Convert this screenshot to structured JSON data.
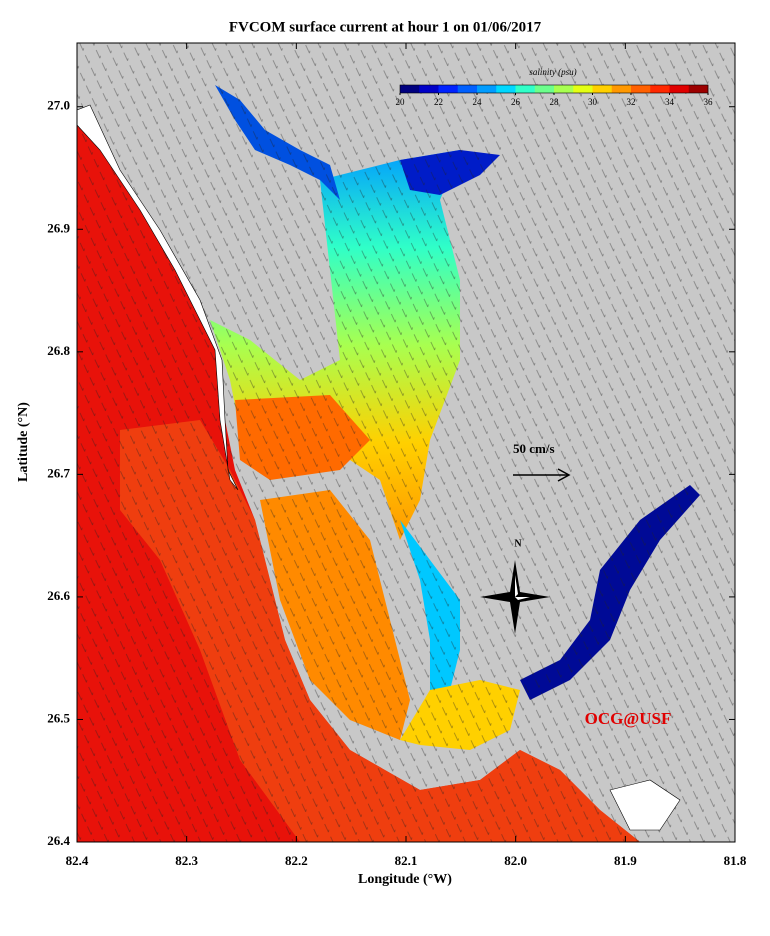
{
  "title": "FVCOM surface current at hour 1 on 01/06/2017",
  "x_axis": {
    "label": "Longitude (°W)",
    "lim": [
      82.4,
      81.8
    ],
    "ticks": [
      82.4,
      82.3,
      82.2,
      82.1,
      {
        "value": 82,
        "label": "82.0"
      },
      81.9,
      81.8
    ]
  },
  "y_axis": {
    "label": "Latitude (°N)",
    "lim": [
      26.4,
      27.052
    ],
    "ticks": [
      26.4,
      26.5,
      26.6,
      26.7,
      26.8,
      26.9,
      {
        "value": 27,
        "label": "27.0"
      }
    ]
  },
  "colorbar": {
    "title": "salinity (psu)",
    "lim": [
      20,
      36
    ],
    "ticks": [
      20,
      22,
      24,
      26,
      28,
      30,
      32,
      34,
      36
    ],
    "colors": [
      "#00007f",
      "#0000c8",
      "#0022ff",
      "#0060ff",
      "#009cff",
      "#00d8ff",
      "#30ffc8",
      "#6cff8c",
      "#a8ff50",
      "#e4ff14",
      "#ffd000",
      "#ff9800",
      "#ff6000",
      "#ff2800",
      "#e00000",
      "#9c0000"
    ]
  },
  "scale_arrow": {
    "label": "50 cm/s"
  },
  "compass": {
    "label": "N"
  },
  "credit": "OCG@USF"
}
